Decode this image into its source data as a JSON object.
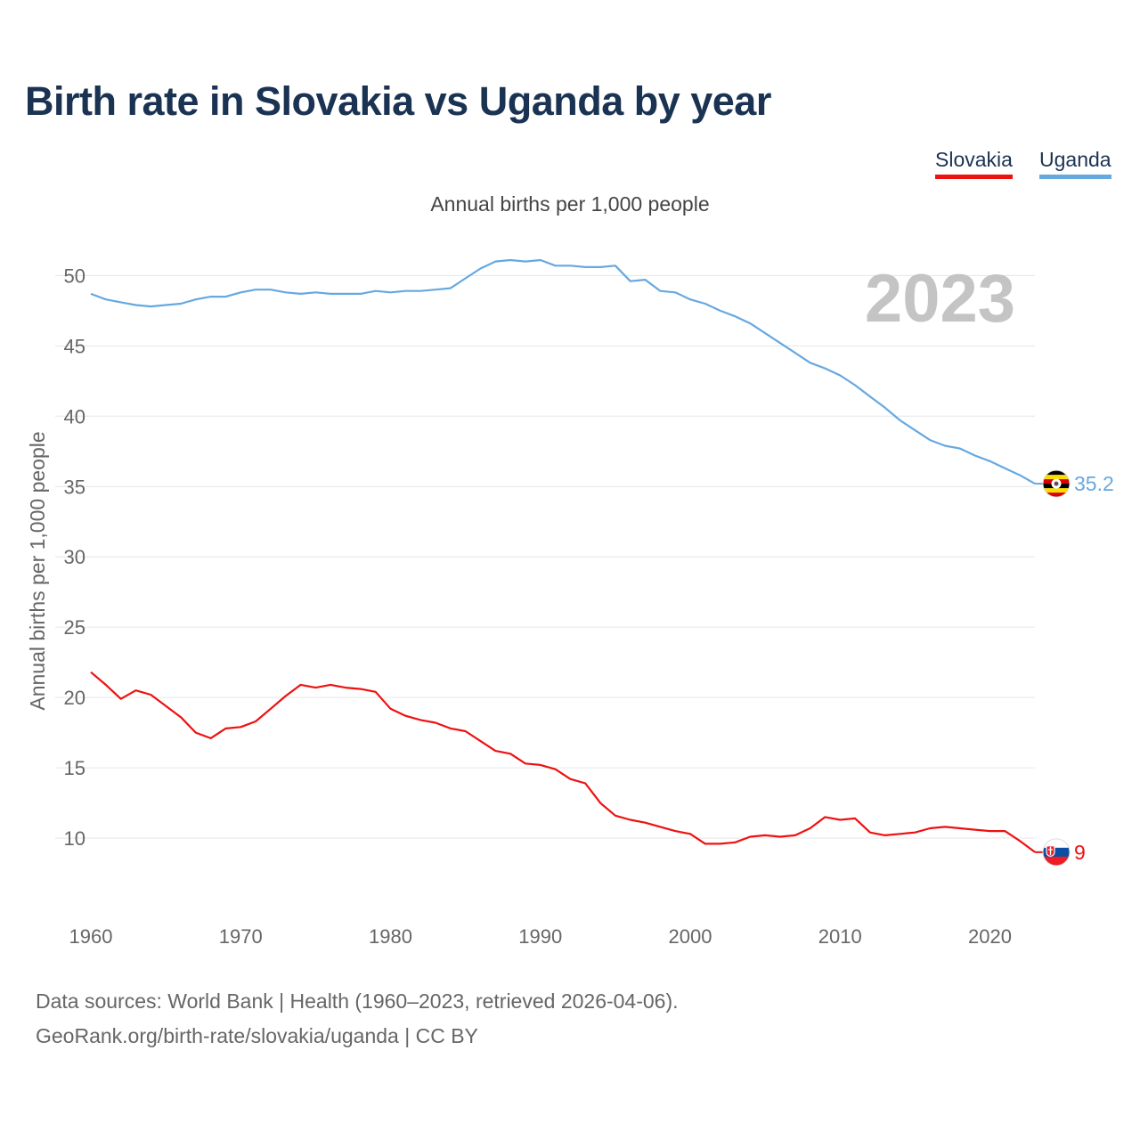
{
  "chart_data": {
    "type": "line",
    "title": "Birth rate in Slovakia vs Uganda by year",
    "subtitle": "Annual births per 1,000 people",
    "ylabel": "Annual births per 1,000 people",
    "xlabel": "",
    "xlim": [
      1960,
      2023
    ],
    "ylim": [
      5,
      53
    ],
    "yticks": [
      10,
      15,
      20,
      25,
      30,
      35,
      40,
      45,
      50
    ],
    "xticks": [
      1960,
      1970,
      1980,
      1990,
      2000,
      2010,
      2020
    ],
    "year_watermark": "2023",
    "legend_position": "top-right",
    "x": [
      1960,
      1961,
      1962,
      1963,
      1964,
      1965,
      1966,
      1967,
      1968,
      1969,
      1970,
      1971,
      1972,
      1973,
      1974,
      1975,
      1976,
      1977,
      1978,
      1979,
      1980,
      1981,
      1982,
      1983,
      1984,
      1985,
      1986,
      1987,
      1988,
      1989,
      1990,
      1991,
      1992,
      1993,
      1994,
      1995,
      1996,
      1997,
      1998,
      1999,
      2000,
      2001,
      2002,
      2003,
      2004,
      2005,
      2006,
      2007,
      2008,
      2009,
      2010,
      2011,
      2012,
      2013,
      2014,
      2015,
      2016,
      2017,
      2018,
      2019,
      2020,
      2021,
      2022,
      2023
    ],
    "series": [
      {
        "name": "Slovakia",
        "color": "#ee1111",
        "end_label": "9",
        "flag": "slovakia-flag-icon",
        "values": [
          21.8,
          20.9,
          19.9,
          20.5,
          20.2,
          19.4,
          18.6,
          17.5,
          17.1,
          17.8,
          17.9,
          18.3,
          19.2,
          20.1,
          20.9,
          20.7,
          20.9,
          20.7,
          20.6,
          20.4,
          19.2,
          18.7,
          18.4,
          18.2,
          17.8,
          17.6,
          16.9,
          16.2,
          16.0,
          15.3,
          15.2,
          14.9,
          14.2,
          13.9,
          12.5,
          11.6,
          11.3,
          11.1,
          10.8,
          10.5,
          10.3,
          9.6,
          9.6,
          9.7,
          10.1,
          10.2,
          10.1,
          10.2,
          10.7,
          11.5,
          11.3,
          11.4,
          10.4,
          10.2,
          10.3,
          10.4,
          10.7,
          10.8,
          10.7,
          10.6,
          10.5,
          10.5,
          9.8,
          9.0
        ]
      },
      {
        "name": "Uganda",
        "color": "#66a8e0",
        "end_label": "35.2",
        "flag": "uganda-flag-icon",
        "values": [
          48.7,
          48.3,
          48.1,
          47.9,
          47.8,
          47.9,
          48.0,
          48.3,
          48.5,
          48.5,
          48.8,
          49.0,
          49.0,
          48.8,
          48.7,
          48.8,
          48.7,
          48.7,
          48.7,
          48.9,
          48.8,
          48.9,
          48.9,
          49.0,
          49.1,
          49.8,
          50.5,
          51.0,
          51.1,
          51.0,
          51.1,
          50.7,
          50.7,
          50.6,
          50.6,
          50.7,
          49.6,
          49.7,
          48.9,
          48.8,
          48.3,
          48.0,
          47.5,
          47.1,
          46.6,
          45.9,
          45.2,
          44.5,
          43.8,
          43.4,
          42.9,
          42.2,
          41.4,
          40.6,
          39.7,
          39.0,
          38.3,
          37.9,
          37.7,
          37.2,
          36.8,
          36.3,
          35.8,
          35.2
        ]
      }
    ]
  },
  "legend": {
    "slovakia": "Slovakia",
    "uganda": "Uganda"
  },
  "footer": {
    "line1": "Data sources: World Bank | Health (1960–2023, retrieved 2026-04-06).",
    "line2": "GeoRank.org/birth-rate/slovakia/uganda | CC BY"
  }
}
